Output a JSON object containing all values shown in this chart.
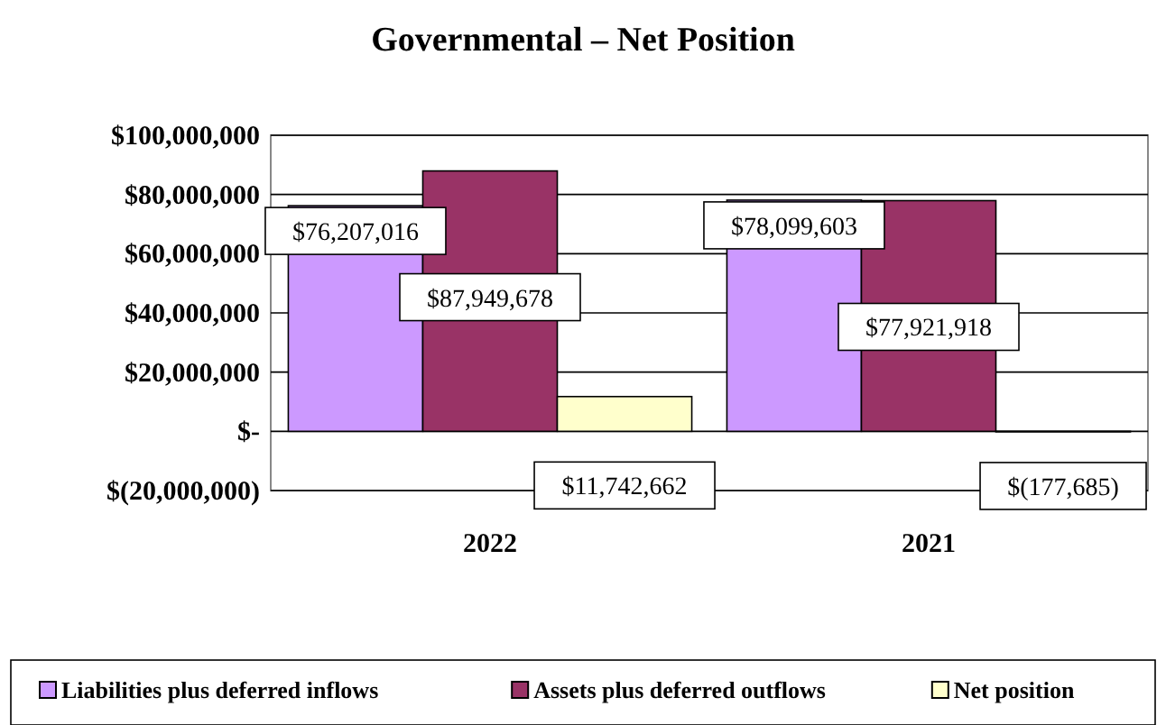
{
  "chart_data": {
    "type": "bar",
    "title": "Governmental – Net Position",
    "categories": [
      "2022",
      "2021"
    ],
    "series": [
      {
        "name": "Liabilities plus deferred inflows",
        "color": "#cc99ff",
        "values": [
          76207016,
          78099603
        ],
        "value_labels": [
          "$76,207,016",
          "$78,099,603"
        ]
      },
      {
        "name": "Assets plus deferred outflows",
        "color": "#993366",
        "values": [
          87949678,
          77921918
        ],
        "value_labels": [
          "$87,949,678",
          "$77,921,918"
        ]
      },
      {
        "name": "Net position",
        "color": "#ffffcc",
        "values": [
          11742662,
          -177685
        ],
        "value_labels": [
          "$11,742,662",
          "$(177,685)"
        ]
      }
    ],
    "ylim": [
      -20000000,
      100000000
    ],
    "yticks": [
      {
        "value": -20000000,
        "label": "$(20,000,000)"
      },
      {
        "value": 0,
        "label": "$-"
      },
      {
        "value": 20000000,
        "label": "$20,000,000"
      },
      {
        "value": 40000000,
        "label": "$40,000,000"
      },
      {
        "value": 60000000,
        "label": "$60,000,000"
      },
      {
        "value": 80000000,
        "label": "$80,000,000"
      },
      {
        "value": 100000000,
        "label": "$100,000,000"
      }
    ],
    "grid": "y",
    "legend": "bottom"
  }
}
